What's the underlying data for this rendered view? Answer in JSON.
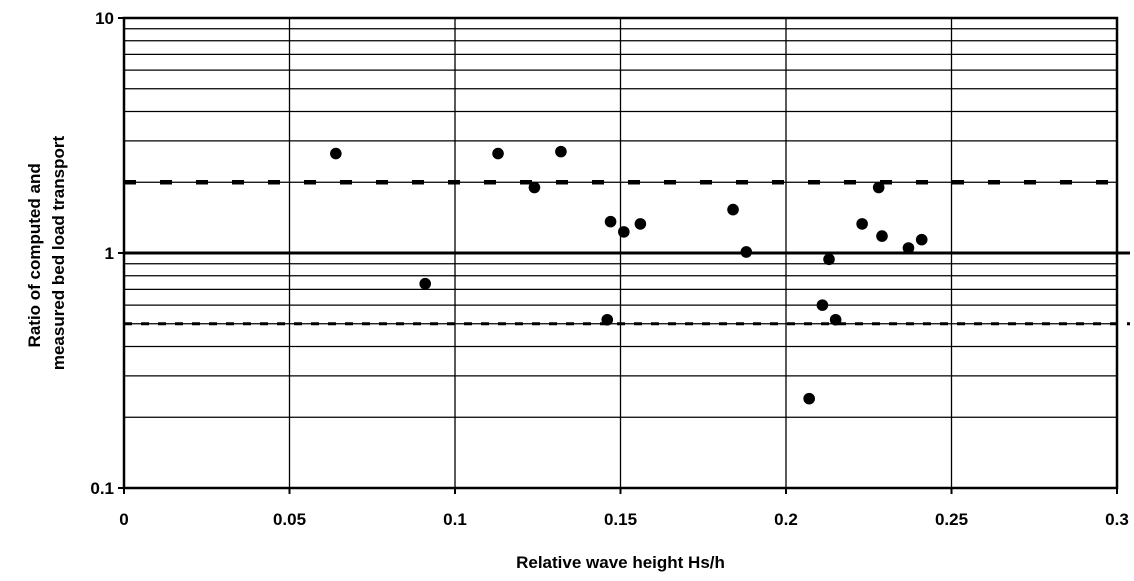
{
  "chart_data": {
    "type": "scatter",
    "title": "",
    "xlabel": "Relative wave height Hs/h",
    "ylabel_lines": [
      "Ratio of computed and",
      "measured bed load transport"
    ],
    "xlim": [
      0,
      0.3
    ],
    "ylim": [
      0.1,
      10
    ],
    "yscale": "log",
    "grid": true,
    "x_ticks": [
      0,
      0.05,
      0.1,
      0.15,
      0.2,
      0.25,
      0.3
    ],
    "x_tick_labels": [
      "0",
      "0.05",
      "0.1",
      "0.15",
      "0.2",
      "0.25",
      "0.3"
    ],
    "y_ticks": [
      0.1,
      1,
      10
    ],
    "y_tick_labels": [
      "0.1",
      "1",
      "10"
    ],
    "reference_lines": [
      {
        "y": 2,
        "style": "dashed-thick"
      },
      {
        "y": 1,
        "style": "solid-thick"
      },
      {
        "y": 0.5,
        "style": "dashed"
      }
    ],
    "points": [
      {
        "x": 0.064,
        "y": 2.65
      },
      {
        "x": 0.091,
        "y": 0.74
      },
      {
        "x": 0.113,
        "y": 2.65
      },
      {
        "x": 0.124,
        "y": 1.9
      },
      {
        "x": 0.132,
        "y": 2.7
      },
      {
        "x": 0.146,
        "y": 0.52
      },
      {
        "x": 0.147,
        "y": 1.36
      },
      {
        "x": 0.151,
        "y": 1.23
      },
      {
        "x": 0.156,
        "y": 1.33
      },
      {
        "x": 0.184,
        "y": 1.53
      },
      {
        "x": 0.188,
        "y": 1.01
      },
      {
        "x": 0.207,
        "y": 0.24
      },
      {
        "x": 0.211,
        "y": 0.6
      },
      {
        "x": 0.213,
        "y": 0.94
      },
      {
        "x": 0.215,
        "y": 0.52
      },
      {
        "x": 0.223,
        "y": 1.33
      },
      {
        "x": 0.228,
        "y": 1.9
      },
      {
        "x": 0.229,
        "y": 1.18
      },
      {
        "x": 0.237,
        "y": 1.05
      },
      {
        "x": 0.241,
        "y": 1.14
      }
    ],
    "marker_color": "#000000",
    "grid_color": "#000000"
  }
}
